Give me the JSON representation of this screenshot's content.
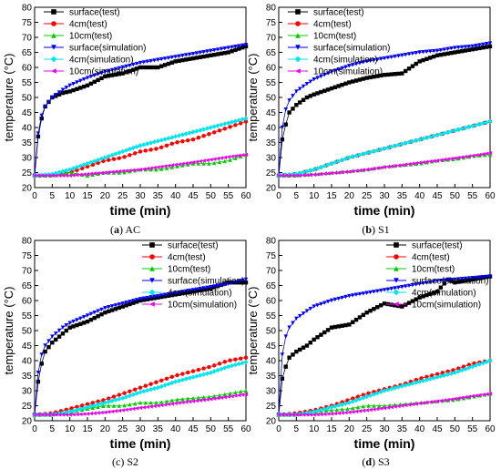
{
  "chart_data": [
    {
      "type": "scatter",
      "panel_letter": "a",
      "panel_name": "AC",
      "xlabel": "time (min)",
      "ylabel": "temperature (°C)",
      "xlim": [
        0,
        60
      ],
      "ylim": [
        20,
        80
      ],
      "xticks": [
        "0",
        "5",
        "10",
        "15",
        "20",
        "25",
        "30",
        "35",
        "40",
        "45",
        "50",
        "55",
        "60"
      ],
      "yticks": [
        "20",
        "25",
        "30",
        "35",
        "40",
        "45",
        "50",
        "55",
        "60",
        "65",
        "70",
        "75",
        "80"
      ],
      "legend_position": "top-left",
      "series": [
        {
          "name": "surface(test)",
          "x": [
            0,
            1,
            2,
            3,
            5,
            8,
            10,
            15,
            20,
            25,
            30,
            35,
            40,
            45,
            50,
            55,
            60
          ],
          "values": [
            24,
            37,
            43,
            47,
            50,
            51.5,
            52,
            54,
            57,
            58,
            60,
            60,
            62,
            63,
            64,
            65,
            67
          ]
        },
        {
          "name": "4cm(test)",
          "x": [
            0,
            5,
            10,
            15,
            20,
            25,
            30,
            35,
            40,
            45,
            50,
            55,
            60
          ],
          "values": [
            24,
            24,
            25,
            27,
            29,
            30,
            32,
            33,
            35,
            36,
            38,
            40,
            42
          ]
        },
        {
          "name": "10cm(test)",
          "x": [
            0,
            5,
            10,
            15,
            20,
            25,
            30,
            35,
            40,
            45,
            50,
            55,
            60
          ],
          "values": [
            24,
            24,
            25,
            24,
            25,
            25,
            26,
            26,
            27,
            28,
            28,
            29,
            31
          ]
        },
        {
          "name": "surface(simulation)",
          "x": [
            0,
            1,
            2,
            3,
            5,
            8,
            10,
            15,
            20,
            25,
            30,
            35,
            40,
            45,
            50,
            55,
            60
          ],
          "values": [
            24,
            38,
            44,
            47,
            50,
            52.5,
            54,
            56.5,
            58.5,
            60,
            61.5,
            62.5,
            63.5,
            64.5,
            65.5,
            66.5,
            67.5
          ]
        },
        {
          "name": "4cm(simulation)",
          "x": [
            0,
            5,
            10,
            15,
            20,
            25,
            30,
            35,
            40,
            45,
            50,
            55,
            60
          ],
          "values": [
            24,
            24.5,
            26,
            28,
            30,
            32,
            34,
            35.5,
            37,
            38.5,
            40,
            41.5,
            43
          ]
        },
        {
          "name": "10cm(simulation)",
          "x": [
            0,
            5,
            10,
            15,
            20,
            25,
            30,
            35,
            40,
            45,
            50,
            55,
            60
          ],
          "values": [
            24,
            24,
            24,
            24.5,
            25,
            25.5,
            26,
            26.8,
            27.6,
            28.4,
            29.3,
            30.2,
            31
          ]
        }
      ]
    },
    {
      "type": "scatter",
      "panel_letter": "b",
      "panel_name": "S1",
      "xlabel": "time (min)",
      "ylabel": "temperature (°C)",
      "xlim": [
        0,
        60
      ],
      "ylim": [
        20,
        80
      ],
      "xticks": [
        "0",
        "5",
        "10",
        "15",
        "20",
        "25",
        "30",
        "35",
        "40",
        "45",
        "50",
        "55",
        "60"
      ],
      "yticks": [
        "20",
        "25",
        "30",
        "35",
        "40",
        "45",
        "50",
        "55",
        "60",
        "65",
        "70",
        "75",
        "80"
      ],
      "legend_position": "top-left",
      "series": [
        {
          "name": "surface(test)",
          "x": [
            0,
            1,
            2,
            3,
            5,
            8,
            10,
            15,
            20,
            25,
            30,
            35,
            40,
            45,
            50,
            55,
            60
          ],
          "values": [
            24,
            36,
            41,
            45,
            47.5,
            50,
            51,
            53,
            55,
            56.5,
            57.5,
            58,
            62,
            64,
            65,
            66,
            67
          ]
        },
        {
          "name": "4cm(test)",
          "x": [
            0,
            5,
            10,
            15,
            20,
            25,
            30,
            35,
            40,
            45,
            50,
            55,
            60
          ],
          "values": [
            24,
            24.5,
            26,
            28,
            30,
            31.5,
            33,
            34.5,
            36,
            37.5,
            39,
            40.5,
            42
          ]
        },
        {
          "name": "10cm(test)",
          "x": [
            0,
            5,
            10,
            15,
            20,
            25,
            30,
            35,
            40,
            45,
            50,
            55,
            60
          ],
          "values": [
            24,
            24,
            24.5,
            25,
            25.5,
            26,
            27,
            27.5,
            28,
            29,
            29.5,
            30.5,
            31
          ]
        },
        {
          "name": "surface(simulation)",
          "x": [
            0,
            1,
            2,
            3,
            5,
            8,
            10,
            15,
            20,
            25,
            30,
            35,
            40,
            45,
            50,
            55,
            60
          ],
          "values": [
            24,
            40,
            46,
            49,
            52,
            54.5,
            56,
            58.5,
            60.5,
            62,
            63,
            64,
            65,
            65.5,
            66.5,
            67,
            68
          ]
        },
        {
          "name": "4cm(simulation)",
          "x": [
            0,
            5,
            10,
            15,
            20,
            25,
            30,
            35,
            40,
            45,
            50,
            55,
            60
          ],
          "values": [
            24,
            24.5,
            26,
            28,
            30,
            31.5,
            33,
            34.5,
            36,
            37.5,
            39,
            40.5,
            42
          ]
        },
        {
          "name": "10cm(simulation)",
          "x": [
            0,
            5,
            10,
            15,
            20,
            25,
            30,
            35,
            40,
            45,
            50,
            55,
            60
          ],
          "values": [
            24,
            24,
            24.3,
            24.8,
            25.3,
            26,
            26.8,
            27.5,
            28.3,
            29,
            29.8,
            30.6,
            31.5
          ]
        }
      ]
    },
    {
      "type": "scatter",
      "panel_letter": "c",
      "panel_name": "S2",
      "xlabel": "time (min)",
      "ylabel": "temperature (°C)",
      "xlim": [
        0,
        60
      ],
      "ylim": [
        20,
        80
      ],
      "xticks": [
        "0",
        "5",
        "10",
        "15",
        "20",
        "25",
        "30",
        "35",
        "40",
        "45",
        "50",
        "55",
        "60"
      ],
      "yticks": [
        "20",
        "25",
        "30",
        "35",
        "40",
        "45",
        "50",
        "55",
        "60",
        "65",
        "70",
        "75",
        "80"
      ],
      "legend_position": "top-right",
      "series": [
        {
          "name": "surface(test)",
          "x": [
            0,
            1,
            2,
            3,
            5,
            8,
            10,
            15,
            20,
            25,
            30,
            35,
            40,
            45,
            50,
            55,
            60
          ],
          "values": [
            22,
            33,
            39,
            43,
            46,
            49,
            51,
            53,
            56,
            58,
            60,
            61,
            62,
            63,
            64,
            66,
            66
          ]
        },
        {
          "name": "4cm(test)",
          "x": [
            0,
            5,
            10,
            15,
            20,
            25,
            30,
            35,
            40,
            45,
            50,
            55,
            60
          ],
          "values": [
            22,
            22.5,
            24,
            25.5,
            27,
            29,
            31,
            33,
            35,
            36.5,
            38,
            40,
            41
          ]
        },
        {
          "name": "10cm(test)",
          "x": [
            0,
            5,
            10,
            15,
            20,
            25,
            30,
            35,
            40,
            45,
            50,
            55,
            60
          ],
          "values": [
            22,
            22,
            23,
            24,
            25,
            25,
            26,
            26,
            27,
            27.5,
            28,
            29,
            30
          ]
        },
        {
          "name": "surface(simulation)",
          "x": [
            0,
            1,
            2,
            3,
            5,
            8,
            10,
            15,
            20,
            25,
            30,
            35,
            40,
            45,
            50,
            55,
            60
          ],
          "values": [
            22,
            36,
            42,
            45,
            48,
            51,
            52.5,
            55,
            57.5,
            59,
            60.5,
            61.5,
            62.5,
            63.5,
            64.5,
            65.5,
            67
          ]
        },
        {
          "name": "4cm(simulation)",
          "x": [
            0,
            5,
            10,
            15,
            20,
            25,
            30,
            35,
            40,
            45,
            50,
            55,
            60
          ],
          "values": [
            22,
            22,
            23,
            24.5,
            26,
            27.5,
            29.5,
            31,
            33,
            34.5,
            36,
            38,
            39.5
          ]
        },
        {
          "name": "10cm(simulation)",
          "x": [
            0,
            5,
            10,
            15,
            20,
            25,
            30,
            35,
            40,
            45,
            50,
            55,
            60
          ],
          "values": [
            22,
            22,
            22,
            22.3,
            22.8,
            23.5,
            24.3,
            25,
            25.8,
            26.5,
            27.2,
            28,
            28.8
          ]
        }
      ]
    },
    {
      "type": "scatter",
      "panel_letter": "d",
      "panel_name": "S3",
      "xlabel": "time (min)",
      "ylabel": "temperature (°C)",
      "xlim": [
        0,
        60
      ],
      "ylim": [
        20,
        80
      ],
      "xticks": [
        "0",
        "5",
        "10",
        "15",
        "20",
        "25",
        "30",
        "35",
        "40",
        "45",
        "50",
        "55",
        "60"
      ],
      "yticks": [
        "20",
        "25",
        "30",
        "35",
        "40",
        "45",
        "50",
        "55",
        "60",
        "65",
        "70",
        "75",
        "80"
      ],
      "legend_position": "top-right",
      "series": [
        {
          "name": "surface(test)",
          "x": [
            0,
            1,
            2,
            3,
            5,
            8,
            10,
            15,
            20,
            25,
            30,
            35,
            40,
            45,
            48,
            50,
            55,
            60
          ],
          "values": [
            22,
            34,
            38,
            41,
            43,
            45,
            47,
            51,
            52,
            56,
            59,
            58,
            61,
            63,
            67,
            66,
            67,
            68
          ]
        },
        {
          "name": "4cm(test)",
          "x": [
            0,
            5,
            10,
            15,
            20,
            25,
            30,
            35,
            40,
            45,
            50,
            55,
            60
          ],
          "values": [
            22,
            22.5,
            23.5,
            25,
            27,
            29,
            30.5,
            32,
            34,
            35.5,
            37,
            39,
            40
          ]
        },
        {
          "name": "10cm(test)",
          "x": [
            0,
            5,
            10,
            15,
            20,
            25,
            30,
            35,
            40,
            45,
            50,
            55,
            60
          ],
          "values": [
            22,
            22,
            23,
            23.5,
            24,
            25,
            25,
            25.5,
            26,
            26.5,
            27,
            28,
            29
          ]
        },
        {
          "name": "surface(simulation)",
          "x": [
            0,
            1,
            2,
            3,
            5,
            8,
            10,
            15,
            20,
            25,
            30,
            35,
            40,
            45,
            50,
            55,
            60
          ],
          "values": [
            22,
            42,
            48,
            51,
            54,
            56.5,
            58,
            60,
            61.5,
            62.5,
            63.5,
            64.5,
            65.5,
            66.5,
            67,
            67.5,
            68
          ]
        },
        {
          "name": "4cm(simulation)",
          "x": [
            0,
            5,
            10,
            15,
            20,
            25,
            30,
            35,
            40,
            45,
            50,
            55,
            60
          ],
          "values": [
            22,
            22,
            23,
            24.5,
            26,
            28,
            30,
            31.5,
            33,
            34.5,
            36,
            38,
            40
          ]
        },
        {
          "name": "10cm(simulation)",
          "x": [
            0,
            5,
            10,
            15,
            20,
            25,
            30,
            35,
            40,
            45,
            50,
            55,
            60
          ],
          "values": [
            22,
            22,
            22,
            22.3,
            22.8,
            23.5,
            24.2,
            25,
            25.8,
            26.5,
            27.3,
            28.2,
            29
          ]
        }
      ]
    }
  ],
  "styles": [
    {
      "color": "#000000",
      "marker": "square"
    },
    {
      "color": "#ff0000",
      "marker": "circle"
    },
    {
      "color": "#00cc00",
      "marker": "triangle-up"
    },
    {
      "color": "#0000ff",
      "marker": "triangle-down"
    },
    {
      "color": "#00e5ee",
      "marker": "diamond"
    },
    {
      "color": "#ee00ee",
      "marker": "triangle-left"
    }
  ]
}
